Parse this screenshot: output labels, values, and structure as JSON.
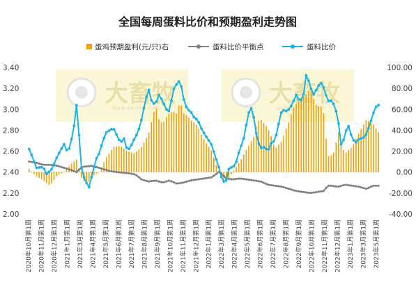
{
  "chart_data": {
    "type": "bar+line",
    "title": "全国每周蛋料比价和预期盈利走势图",
    "legend": [
      {
        "key": "profit",
        "label": "蛋鸡预期盈利(元/只)右",
        "color": "#f0a000",
        "marker": "bar"
      },
      {
        "key": "breakeven",
        "label": "蛋料比价平衡点",
        "color": "#808080",
        "marker": "line-dot"
      },
      {
        "key": "ratio",
        "label": "蛋料比价",
        "color": "#19b3e6",
        "marker": "line-dot"
      }
    ],
    "left_axis": {
      "min": 2.0,
      "max": 3.4,
      "step": 0.2,
      "ticks": [
        "2.00",
        "2.20",
        "2.40",
        "2.60",
        "2.80",
        "3.00",
        "3.20",
        "3.40"
      ]
    },
    "right_axis": {
      "min": -40,
      "max": 100,
      "step": 20,
      "ticks": [
        "-40.00",
        "-20.00",
        "0.00",
        "20.00",
        "40.00",
        "60.00",
        "80.00",
        "100.00"
      ]
    },
    "x_tick_labels": [
      "2020年10月第1周",
      "2020年11月第1周",
      "2020年12月第1周",
      "2021年1月第1周",
      "2021年3月第1周",
      "2021年4月第1周",
      "2021年5月第1周",
      "2021年6月第1周",
      "2021年7月第1周",
      "2021年8月第1周",
      "2021年9月第1周",
      "2021年10月第1周",
      "2021年11月第1周",
      "2021年12月第1周",
      "2022年1月第1周",
      "2022年3月第1周",
      "2022年4月第1周",
      "2022年5月第1周",
      "2022年6月第1周",
      "2022年7月第1周",
      "2022年8月第1周",
      "2022年9月第1周",
      "2022年10月第1周",
      "2022年11月第1周",
      "2022年12月第1周",
      "2023年1月第1周",
      "2023年3月第1周",
      "2023年5月第1周"
    ],
    "weeks": 141,
    "profit_anchors": [
      [
        0,
        3
      ],
      [
        4,
        -4
      ],
      [
        8,
        -8
      ],
      [
        12,
        -13
      ],
      [
        16,
        -3
      ],
      [
        20,
        0
      ],
      [
        24,
        8
      ],
      [
        27,
        12
      ],
      [
        30,
        -6
      ],
      [
        33,
        -12
      ],
      [
        36,
        -4
      ],
      [
        40,
        0
      ],
      [
        44,
        14
      ],
      [
        48,
        24
      ],
      [
        52,
        25
      ],
      [
        56,
        20
      ],
      [
        60,
        18
      ],
      [
        64,
        24
      ],
      [
        68,
        36
      ],
      [
        70,
        50
      ],
      [
        72,
        64
      ],
      [
        74,
        50
      ],
      [
        76,
        46
      ],
      [
        78,
        52
      ],
      [
        80,
        57
      ],
      [
        82,
        58
      ],
      [
        84,
        56
      ],
      [
        86,
        68
      ],
      [
        88,
        56
      ],
      [
        90,
        54
      ],
      [
        92,
        50
      ],
      [
        94,
        47
      ],
      [
        96,
        44
      ],
      [
        98,
        36
      ],
      [
        100,
        30
      ],
      [
        104,
        20
      ],
      [
        108,
        0
      ],
      [
        112,
        -10
      ],
      [
        116,
        0
      ],
      [
        120,
        10
      ],
      [
        124,
        22
      ],
      [
        128,
        34
      ],
      [
        130,
        48
      ],
      [
        132,
        50
      ],
      [
        134,
        46
      ],
      [
        136,
        42
      ],
      [
        138,
        34
      ],
      [
        140,
        22
      ],
      [
        144,
        30
      ],
      [
        146,
        40
      ],
      [
        148,
        48
      ],
      [
        150,
        60
      ],
      [
        152,
        65
      ],
      [
        154,
        68
      ],
      [
        156,
        72
      ],
      [
        158,
        74
      ],
      [
        160,
        80
      ],
      [
        162,
        70
      ],
      [
        164,
        62
      ],
      [
        166,
        64
      ],
      [
        168,
        55
      ],
      [
        170,
        15
      ],
      [
        172,
        16
      ],
      [
        174,
        20
      ],
      [
        176,
        40
      ],
      [
        178,
        25
      ],
      [
        180,
        18
      ],
      [
        184,
        24
      ],
      [
        188,
        38
      ],
      [
        192,
        50
      ],
      [
        196,
        46
      ],
      [
        199,
        38
      ]
    ],
    "breakeven_anchors": [
      [
        0,
        2.5
      ],
      [
        4,
        2.49
      ],
      [
        8,
        2.47
      ],
      [
        12,
        2.47
      ],
      [
        16,
        2.46
      ],
      [
        20,
        2.44
      ],
      [
        24,
        2.42
      ],
      [
        27,
        2.4
      ],
      [
        30,
        2.45
      ],
      [
        36,
        2.46
      ],
      [
        40,
        2.44
      ],
      [
        46,
        2.41
      ],
      [
        50,
        2.4
      ],
      [
        56,
        2.39
      ],
      [
        60,
        2.38
      ],
      [
        62,
        2.36
      ],
      [
        64,
        2.33
      ],
      [
        68,
        2.31
      ],
      [
        72,
        2.32
      ],
      [
        76,
        2.3
      ],
      [
        80,
        2.32
      ],
      [
        84,
        2.29
      ],
      [
        88,
        2.3
      ],
      [
        92,
        2.32
      ],
      [
        96,
        2.33
      ],
      [
        100,
        2.34
      ],
      [
        104,
        2.35
      ],
      [
        108,
        2.4
      ],
      [
        110,
        2.38
      ],
      [
        112,
        2.34
      ],
      [
        116,
        2.33
      ],
      [
        120,
        2.34
      ],
      [
        124,
        2.33
      ],
      [
        128,
        2.32
      ],
      [
        132,
        2.31
      ],
      [
        136,
        2.28
      ],
      [
        140,
        2.27
      ],
      [
        144,
        2.26
      ],
      [
        148,
        2.24
      ],
      [
        152,
        2.22
      ],
      [
        156,
        2.21
      ],
      [
        160,
        2.2
      ],
      [
        164,
        2.21
      ],
      [
        168,
        2.22
      ],
      [
        170,
        2.27
      ],
      [
        172,
        2.27
      ],
      [
        176,
        2.26
      ],
      [
        180,
        2.28
      ],
      [
        184,
        2.27
      ],
      [
        188,
        2.26
      ],
      [
        192,
        2.24
      ],
      [
        196,
        2.27
      ],
      [
        199,
        2.27
      ]
    ],
    "ratio_anchors": [
      [
        0,
        2.62
      ],
      [
        2,
        2.54
      ],
      [
        4,
        2.44
      ],
      [
        8,
        2.45
      ],
      [
        10,
        2.38
      ],
      [
        13,
        2.43
      ],
      [
        16,
        2.55
      ],
      [
        20,
        2.67
      ],
      [
        22,
        2.58
      ],
      [
        24,
        2.7
      ],
      [
        26,
        2.88
      ],
      [
        27,
        3.04
      ],
      [
        28,
        2.85
      ],
      [
        30,
        2.4
      ],
      [
        32,
        2.32
      ],
      [
        34,
        2.25
      ],
      [
        36,
        2.38
      ],
      [
        38,
        2.52
      ],
      [
        40,
        2.58
      ],
      [
        42,
        2.7
      ],
      [
        44,
        2.78
      ],
      [
        48,
        2.82
      ],
      [
        50,
        2.75
      ],
      [
        52,
        2.68
      ],
      [
        54,
        2.72
      ],
      [
        56,
        2.6
      ],
      [
        58,
        2.65
      ],
      [
        60,
        2.72
      ],
      [
        62,
        2.78
      ],
      [
        64,
        2.9
      ],
      [
        66,
        3.06
      ],
      [
        68,
        3.2
      ],
      [
        70,
        3.06
      ],
      [
        72,
        3.05
      ],
      [
        74,
        3.14
      ],
      [
        76,
        3.08
      ],
      [
        78,
        3.0
      ],
      [
        80,
        2.98
      ],
      [
        82,
        3.18
      ],
      [
        84,
        3.24
      ],
      [
        86,
        3.28
      ],
      [
        88,
        3.1
      ],
      [
        90,
        3.0
      ],
      [
        92,
        2.98
      ],
      [
        94,
        2.92
      ],
      [
        96,
        2.9
      ],
      [
        98,
        2.82
      ],
      [
        100,
        2.76
      ],
      [
        104,
        2.66
      ],
      [
        106,
        2.55
      ],
      [
        108,
        2.45
      ],
      [
        110,
        2.32
      ],
      [
        112,
        2.3
      ],
      [
        114,
        2.45
      ],
      [
        116,
        2.44
      ],
      [
        118,
        2.5
      ],
      [
        120,
        2.62
      ],
      [
        122,
        2.7
      ],
      [
        124,
        2.88
      ],
      [
        126,
        3.04
      ],
      [
        128,
        2.92
      ],
      [
        130,
        2.7
      ],
      [
        132,
        2.63
      ],
      [
        134,
        2.64
      ],
      [
        136,
        2.6
      ],
      [
        138,
        2.68
      ],
      [
        140,
        2.7
      ],
      [
        144,
        3.0
      ],
      [
        146,
        2.98
      ],
      [
        148,
        3.0
      ],
      [
        150,
        3.05
      ],
      [
        152,
        3.14
      ],
      [
        154,
        3.08
      ],
      [
        156,
        3.1
      ],
      [
        158,
        3.35
      ],
      [
        160,
        3.22
      ],
      [
        162,
        3.14
      ],
      [
        164,
        3.2
      ],
      [
        166,
        3.26
      ],
      [
        168,
        3.2
      ],
      [
        170,
        3.08
      ],
      [
        172,
        3.08
      ],
      [
        174,
        3.04
      ],
      [
        176,
        2.9
      ],
      [
        178,
        2.62
      ],
      [
        180,
        2.78
      ],
      [
        182,
        2.84
      ],
      [
        184,
        2.72
      ],
      [
        186,
        2.68
      ],
      [
        188,
        2.72
      ],
      [
        190,
        2.72
      ],
      [
        192,
        2.76
      ],
      [
        194,
        2.85
      ],
      [
        196,
        2.96
      ],
      [
        198,
        3.04
      ],
      [
        199,
        3.04
      ]
    ]
  }
}
